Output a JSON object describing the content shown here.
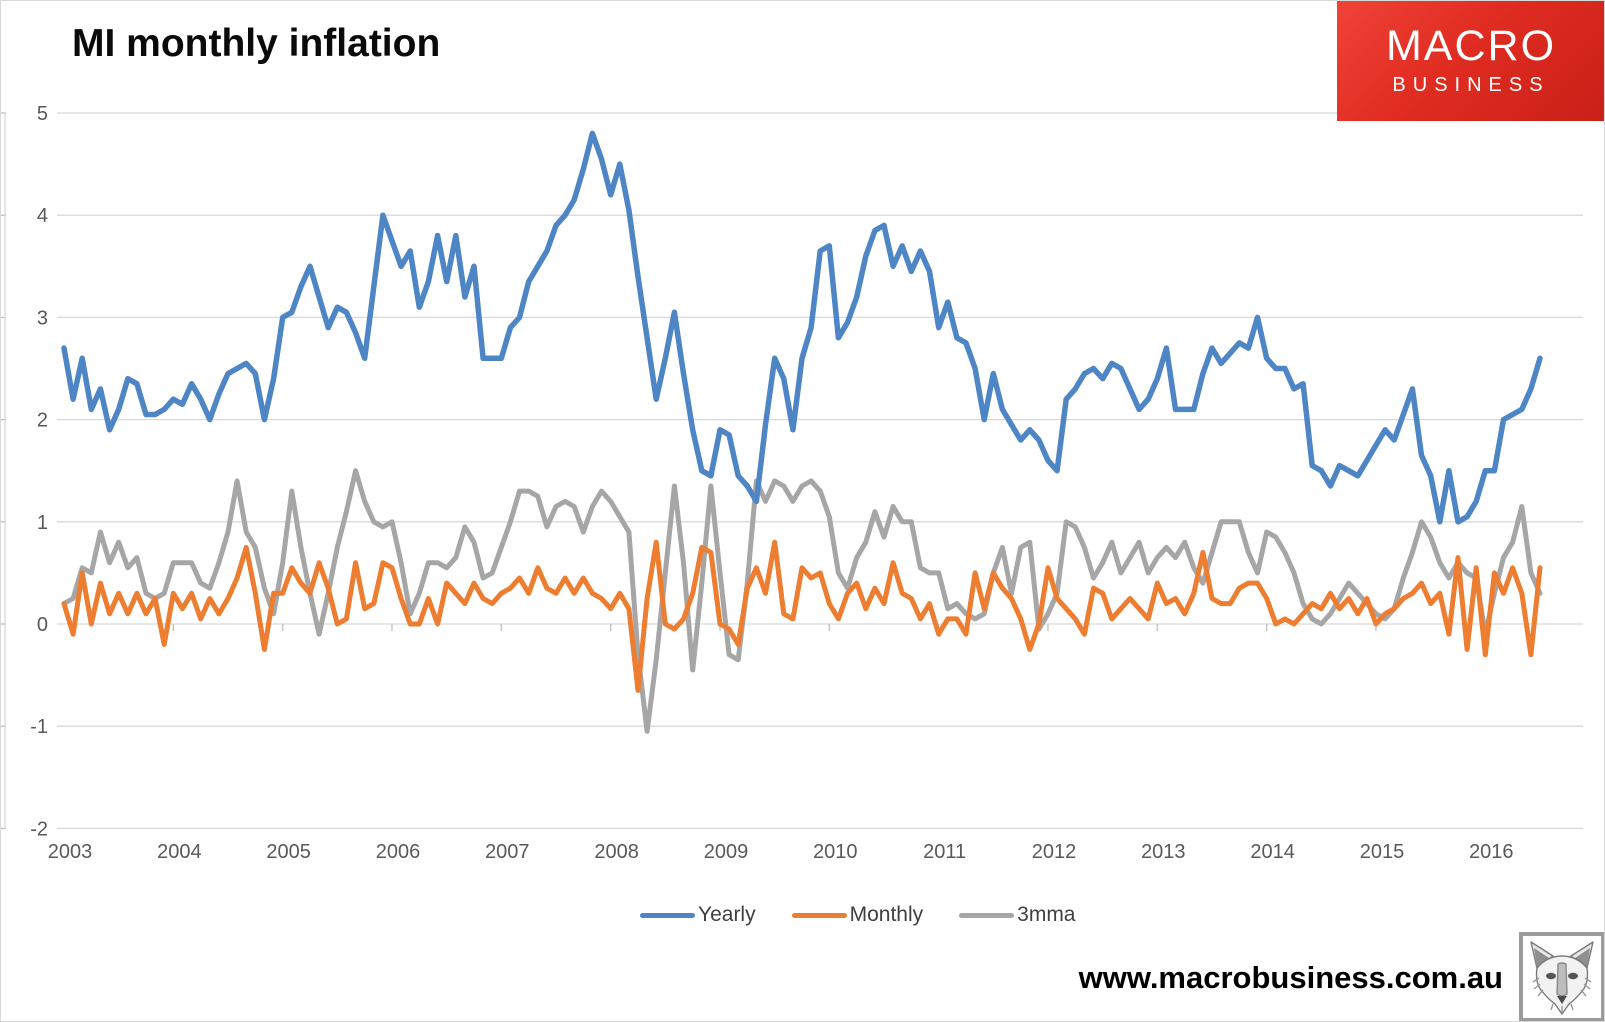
{
  "title": "MI monthly inflation",
  "logo": {
    "line1": "MACRO",
    "line2": "BUSINESS",
    "bg_color": "#df2b20",
    "text_color": "#ffffff"
  },
  "watermark": "www.macrobusiness.com.au",
  "theme": {
    "background": "#ffffff",
    "gridline_color": "#d9d9d9",
    "tick_color": "#bfbfbf",
    "axis_label_color": "#595959",
    "legend_text_color": "#3f3f3f"
  },
  "chart_data": {
    "type": "line",
    "title": "MI monthly inflation",
    "xlabel": "",
    "ylabel": "",
    "x_unit": "month",
    "x_range": [
      "2003-01",
      "2016-07"
    ],
    "x_tick_labels": [
      "2003",
      "2004",
      "2005",
      "2006",
      "2007",
      "2008",
      "2009",
      "2010",
      "2011",
      "2012",
      "2013",
      "2014",
      "2015",
      "2016"
    ],
    "ylim": [
      -2,
      5
    ],
    "yticks": [
      5,
      4,
      3,
      2,
      1,
      0,
      -1,
      -2
    ],
    "grid": true,
    "legend_position": "bottom",
    "series": [
      {
        "name": "Yearly",
        "color": "#4e86c5",
        "values": [
          2.7,
          2.2,
          2.6,
          2.1,
          2.3,
          1.9,
          2.1,
          2.4,
          2.35,
          2.05,
          2.05,
          2.1,
          2.2,
          2.15,
          2.35,
          2.2,
          2.0,
          2.25,
          2.45,
          2.5,
          2.55,
          2.45,
          2.0,
          2.4,
          3.0,
          3.05,
          3.3,
          3.5,
          3.2,
          2.9,
          3.1,
          3.05,
          2.85,
          2.6,
          3.3,
          4.0,
          3.75,
          3.5,
          3.65,
          3.1,
          3.35,
          3.8,
          3.35,
          3.8,
          3.2,
          3.5,
          2.6,
          2.6,
          2.6,
          2.9,
          3.0,
          3.35,
          3.5,
          3.65,
          3.9,
          4.0,
          4.15,
          4.45,
          4.8,
          4.55,
          4.2,
          4.5,
          4.05,
          3.4,
          2.8,
          2.2,
          2.6,
          3.05,
          2.45,
          1.9,
          1.5,
          1.45,
          1.9,
          1.85,
          1.45,
          1.35,
          1.2,
          1.95,
          2.6,
          2.4,
          1.9,
          2.6,
          2.9,
          3.65,
          3.7,
          2.8,
          2.95,
          3.2,
          3.6,
          3.85,
          3.9,
          3.5,
          3.7,
          3.45,
          3.65,
          3.45,
          2.9,
          3.15,
          2.8,
          2.75,
          2.5,
          2.0,
          2.45,
          2.1,
          1.95,
          1.8,
          1.9,
          1.8,
          1.6,
          1.5,
          2.2,
          2.3,
          2.45,
          2.5,
          2.4,
          2.55,
          2.5,
          2.3,
          2.1,
          2.2,
          2.4,
          2.7,
          2.1,
          2.1,
          2.1,
          2.45,
          2.7,
          2.55,
          2.65,
          2.75,
          2.7,
          3.0,
          2.6,
          2.5,
          2.5,
          2.3,
          2.35,
          1.55,
          1.5,
          1.35,
          1.55,
          1.5,
          1.45,
          1.6,
          1.75,
          1.9,
          1.8,
          2.05,
          2.3,
          1.65,
          1.45,
          1.0,
          1.5,
          1.0,
          1.05,
          1.2,
          1.5,
          1.5,
          2.0,
          2.05,
          2.1,
          2.3,
          2.6
        ]
      },
      {
        "name": "Monthly",
        "color": "#ed7d31",
        "values": [
          0.2,
          -0.1,
          0.5,
          0.0,
          0.4,
          0.1,
          0.3,
          0.1,
          0.3,
          0.1,
          0.25,
          -0.2,
          0.3,
          0.15,
          0.3,
          0.05,
          0.25,
          0.1,
          0.25,
          0.45,
          0.75,
          0.3,
          -0.25,
          0.3,
          0.3,
          0.55,
          0.4,
          0.3,
          0.6,
          0.35,
          0.0,
          0.05,
          0.6,
          0.15,
          0.2,
          0.6,
          0.55,
          0.25,
          0.0,
          0.0,
          0.25,
          0.0,
          0.4,
          0.3,
          0.2,
          0.4,
          0.25,
          0.2,
          0.3,
          0.35,
          0.45,
          0.3,
          0.55,
          0.35,
          0.3,
          0.45,
          0.3,
          0.45,
          0.3,
          0.25,
          0.15,
          0.3,
          0.15,
          -0.65,
          0.25,
          0.8,
          0.0,
          -0.05,
          0.05,
          0.3,
          0.75,
          0.7,
          0.0,
          -0.05,
          -0.2,
          0.35,
          0.55,
          0.3,
          0.8,
          0.1,
          0.05,
          0.55,
          0.45,
          0.5,
          0.2,
          0.05,
          0.3,
          0.4,
          0.15,
          0.35,
          0.2,
          0.6,
          0.3,
          0.25,
          0.05,
          0.2,
          -0.1,
          0.05,
          0.05,
          -0.1,
          0.5,
          0.15,
          0.5,
          0.35,
          0.25,
          0.05,
          -0.25,
          0.0,
          0.55,
          0.25,
          0.15,
          0.05,
          -0.1,
          0.35,
          0.3,
          0.05,
          0.15,
          0.25,
          0.15,
          0.05,
          0.4,
          0.2,
          0.25,
          0.1,
          0.3,
          0.7,
          0.25,
          0.2,
          0.2,
          0.35,
          0.4,
          0.4,
          0.25,
          0.0,
          0.05,
          0.0,
          0.1,
          0.2,
          0.15,
          0.3,
          0.15,
          0.25,
          0.1,
          0.25,
          0.0,
          0.1,
          0.15,
          0.25,
          0.3,
          0.4,
          0.2,
          0.3,
          -0.1,
          0.65,
          -0.25,
          0.55,
          -0.3,
          0.5,
          0.3,
          0.55,
          0.3,
          -0.3,
          0.55
        ]
      },
      {
        "name": "3mma",
        "color": "#a6a6a6",
        "values": [
          0.2,
          0.25,
          0.55,
          0.5,
          0.9,
          0.6,
          0.8,
          0.55,
          0.65,
          0.3,
          0.25,
          0.3,
          0.6,
          0.6,
          0.6,
          0.4,
          0.35,
          0.6,
          0.9,
          1.4,
          0.9,
          0.75,
          0.35,
          0.1,
          0.6,
          1.3,
          0.75,
          0.3,
          -0.1,
          0.3,
          0.75,
          1.1,
          1.5,
          1.2,
          1.0,
          0.95,
          1.0,
          0.6,
          0.1,
          0.3,
          0.6,
          0.6,
          0.55,
          0.65,
          0.95,
          0.8,
          0.45,
          0.5,
          0.75,
          1.0,
          1.3,
          1.3,
          1.25,
          0.95,
          1.15,
          1.2,
          1.15,
          0.9,
          1.15,
          1.3,
          1.2,
          1.05,
          0.9,
          -0.3,
          -1.05,
          -0.35,
          0.5,
          1.35,
          0.6,
          -0.45,
          0.4,
          1.35,
          0.5,
          -0.3,
          -0.35,
          0.4,
          1.4,
          1.2,
          1.4,
          1.35,
          1.2,
          1.35,
          1.4,
          1.3,
          1.05,
          0.5,
          0.35,
          0.65,
          0.8,
          1.1,
          0.85,
          1.15,
          1.0,
          1.0,
          0.55,
          0.5,
          0.5,
          0.15,
          0.2,
          0.1,
          0.05,
          0.1,
          0.5,
          0.75,
          0.3,
          0.75,
          0.8,
          -0.05,
          0.1,
          0.3,
          1.0,
          0.95,
          0.75,
          0.45,
          0.6,
          0.8,
          0.5,
          0.65,
          0.8,
          0.5,
          0.65,
          0.75,
          0.65,
          0.8,
          0.55,
          0.4,
          0.7,
          1.0,
          1.0,
          1.0,
          0.7,
          0.5,
          0.9,
          0.85,
          0.7,
          0.5,
          0.2,
          0.05,
          0.0,
          0.1,
          0.25,
          0.4,
          0.3,
          0.2,
          0.1,
          0.05,
          0.15,
          0.45,
          0.7,
          1.0,
          0.85,
          0.6,
          0.45,
          0.6,
          0.5,
          0.45,
          -0.1,
          0.3,
          0.65,
          0.8,
          1.15,
          0.5,
          0.3
        ]
      }
    ]
  }
}
